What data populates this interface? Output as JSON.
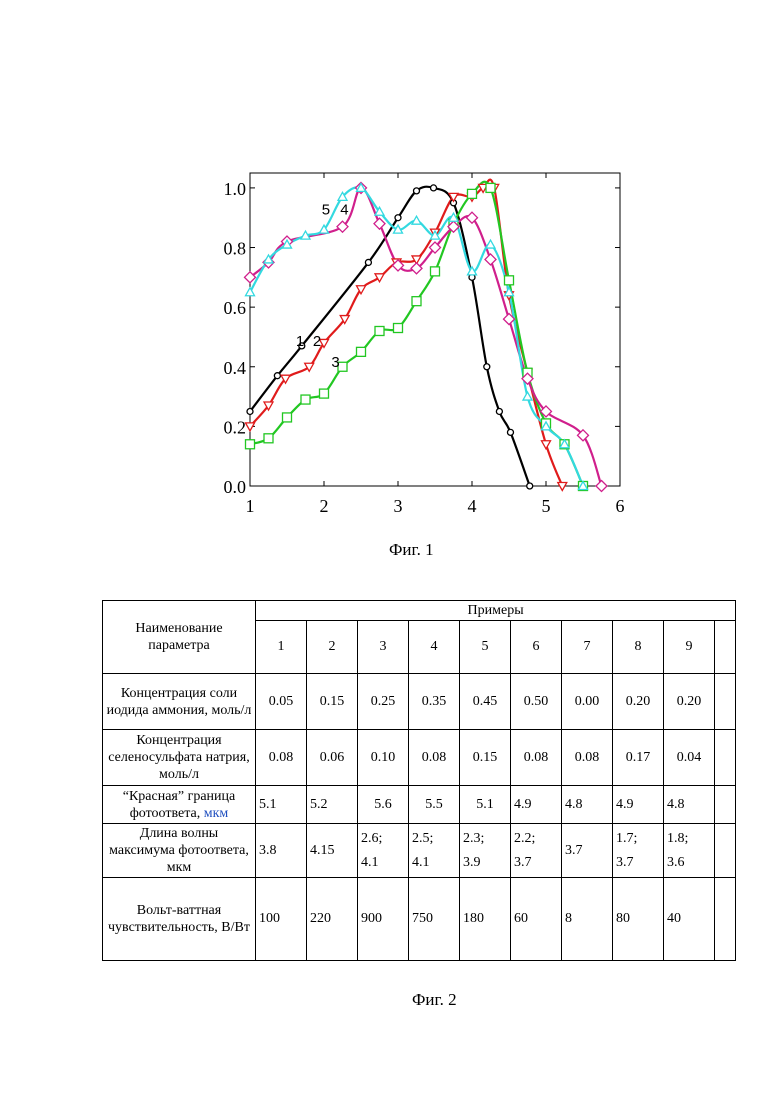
{
  "figure1": {
    "caption": "Фиг. 1",
    "chart_data": {
      "type": "line",
      "xlim": [
        1,
        6
      ],
      "ylim": [
        0.0,
        1.05
      ],
      "xticks": [
        "1",
        "2",
        "3",
        "4",
        "5",
        "6"
      ],
      "yticks": [
        "0.0",
        "0.2",
        "0.4",
        "0.6",
        "0.8",
        "1.0"
      ],
      "grid": false,
      "series": [
        {
          "name": "1",
          "color": "#000000",
          "marker": "circle",
          "points": [
            [
              1.0,
              0.25
            ],
            [
              1.37,
              0.37
            ],
            [
              1.7,
              0.47
            ],
            [
              2.6,
              0.75
            ],
            [
              3.0,
              0.9
            ],
            [
              3.25,
              0.99
            ],
            [
              3.48,
              1.0
            ],
            [
              3.75,
              0.95
            ],
            [
              4.0,
              0.7
            ],
            [
              4.2,
              0.4
            ],
            [
              4.37,
              0.25
            ],
            [
              4.52,
              0.18
            ],
            [
              4.78,
              0.0
            ]
          ]
        },
        {
          "name": "2",
          "color": "#e01b1b",
          "marker": "triangle-down",
          "points": [
            [
              1.0,
              0.2
            ],
            [
              1.25,
              0.27
            ],
            [
              1.48,
              0.36
            ],
            [
              1.8,
              0.4
            ],
            [
              2.0,
              0.48
            ],
            [
              2.28,
              0.56
            ],
            [
              2.5,
              0.66
            ],
            [
              2.75,
              0.7
            ],
            [
              2.98,
              0.75
            ],
            [
              3.25,
              0.76
            ],
            [
              3.5,
              0.85
            ],
            [
              3.75,
              0.97
            ],
            [
              4.0,
              0.97
            ],
            [
              4.15,
              1.0
            ],
            [
              4.3,
              1.0
            ],
            [
              4.5,
              0.64
            ],
            [
              4.75,
              0.38
            ],
            [
              5.0,
              0.14
            ],
            [
              5.22,
              0.0
            ]
          ]
        },
        {
          "name": "3",
          "color": "#22c722",
          "marker": "square",
          "points": [
            [
              1.0,
              0.14
            ],
            [
              1.25,
              0.16
            ],
            [
              1.5,
              0.23
            ],
            [
              1.75,
              0.29
            ],
            [
              2.0,
              0.31
            ],
            [
              2.25,
              0.4
            ],
            [
              2.5,
              0.45
            ],
            [
              2.75,
              0.52
            ],
            [
              3.0,
              0.53
            ],
            [
              3.25,
              0.62
            ],
            [
              3.5,
              0.72
            ],
            [
              3.75,
              0.88
            ],
            [
              4.0,
              0.98
            ],
            [
              4.25,
              1.0
            ],
            [
              4.5,
              0.69
            ],
            [
              4.75,
              0.38
            ],
            [
              5.0,
              0.21
            ],
            [
              5.25,
              0.14
            ],
            [
              5.5,
              0.0
            ]
          ]
        },
        {
          "name": "4",
          "color": "#d01f8c",
          "marker": "diamond",
          "points": [
            [
              1.0,
              0.7
            ],
            [
              1.25,
              0.75
            ],
            [
              1.5,
              0.82
            ],
            [
              2.25,
              0.87
            ],
            [
              2.5,
              1.0
            ],
            [
              2.75,
              0.88
            ],
            [
              3.0,
              0.74
            ],
            [
              3.25,
              0.73
            ],
            [
              3.5,
              0.8
            ],
            [
              3.75,
              0.87
            ],
            [
              4.0,
              0.9
            ],
            [
              4.25,
              0.76
            ],
            [
              4.5,
              0.56
            ],
            [
              4.75,
              0.36
            ],
            [
              5.0,
              0.25
            ],
            [
              5.5,
              0.17
            ],
            [
              5.75,
              0.0
            ]
          ]
        },
        {
          "name": "5",
          "color": "#33d9e0",
          "marker": "triangle-up",
          "points": [
            [
              1.0,
              0.65
            ],
            [
              1.25,
              0.76
            ],
            [
              1.5,
              0.81
            ],
            [
              1.75,
              0.84
            ],
            [
              2.0,
              0.86
            ],
            [
              2.25,
              0.97
            ],
            [
              2.5,
              1.0
            ],
            [
              2.75,
              0.92
            ],
            [
              3.0,
              0.86
            ],
            [
              3.25,
              0.89
            ],
            [
              3.5,
              0.84
            ],
            [
              3.75,
              0.9
            ],
            [
              4.0,
              0.72
            ],
            [
              4.25,
              0.81
            ],
            [
              4.5,
              0.65
            ],
            [
              4.75,
              0.3
            ],
            [
              5.0,
              0.2
            ],
            [
              5.25,
              0.14
            ],
            [
              5.5,
              0.0
            ]
          ]
        }
      ],
      "curve_labels": [
        {
          "text": "1",
          "x": 1.62,
          "y": 0.47
        },
        {
          "text": "2",
          "x": 1.85,
          "y": 0.47
        },
        {
          "text": "3",
          "x": 2.1,
          "y": 0.4
        },
        {
          "text": "5",
          "x": 1.97,
          "y": 0.91
        },
        {
          "text": "4",
          "x": 2.22,
          "y": 0.91
        }
      ]
    }
  },
  "figure2": {
    "caption": "Фиг. 2",
    "table": {
      "param_header": "Наименование параметра",
      "examples_header": "Примеры",
      "example_numbers": [
        "1",
        "2",
        "3",
        "4",
        "5",
        "6",
        "7",
        "8",
        "9"
      ],
      "rows": [
        {
          "label": "Концентрация соли иодида аммония, моль/л",
          "cells": [
            "0.05",
            "0.15",
            "0.25",
            "0.35",
            "0.45",
            "0.50",
            "0.00",
            "0.20",
            "0.20"
          ]
        },
        {
          "label": "Концентрация селеносульфата натрия, моль/л",
          "cells": [
            "0.08",
            "0.06",
            "0.10",
            "0.08",
            "0.15",
            "0.08",
            "0.08",
            "0.17",
            "0.04"
          ]
        },
        {
          "label_main": "“Красная” граница фотоответа,",
          "label_unit": "мкм",
          "cells": [
            "5.1",
            "5.2",
            "5.6",
            "5.5",
            "5.1",
            "4.9",
            "4.8",
            "4.9",
            "4.8"
          ]
        },
        {
          "label": "Длина волны максимума фотоответа, мкм",
          "cells": [
            {
              "a": "3.8"
            },
            {
              "a": "4.15"
            },
            {
              "a": "2.6;",
              "b": "4.1"
            },
            {
              "a": "2.5;",
              "b": "4.1"
            },
            {
              "a": "2.3;",
              "b": "3.9"
            },
            {
              "a": "2.2;",
              "b": "3.7"
            },
            {
              "a": "3.7"
            },
            {
              "a": "1.7;",
              "b": "3.7"
            },
            {
              "a": "1.8;",
              "b": "3.6"
            }
          ]
        },
        {
          "label": "Вольт-ваттная чувствительность, В/Вт",
          "cells": [
            "100",
            "220",
            "900",
            "750",
            "180",
            "60",
            "8",
            "80",
            "40"
          ]
        }
      ]
    }
  }
}
